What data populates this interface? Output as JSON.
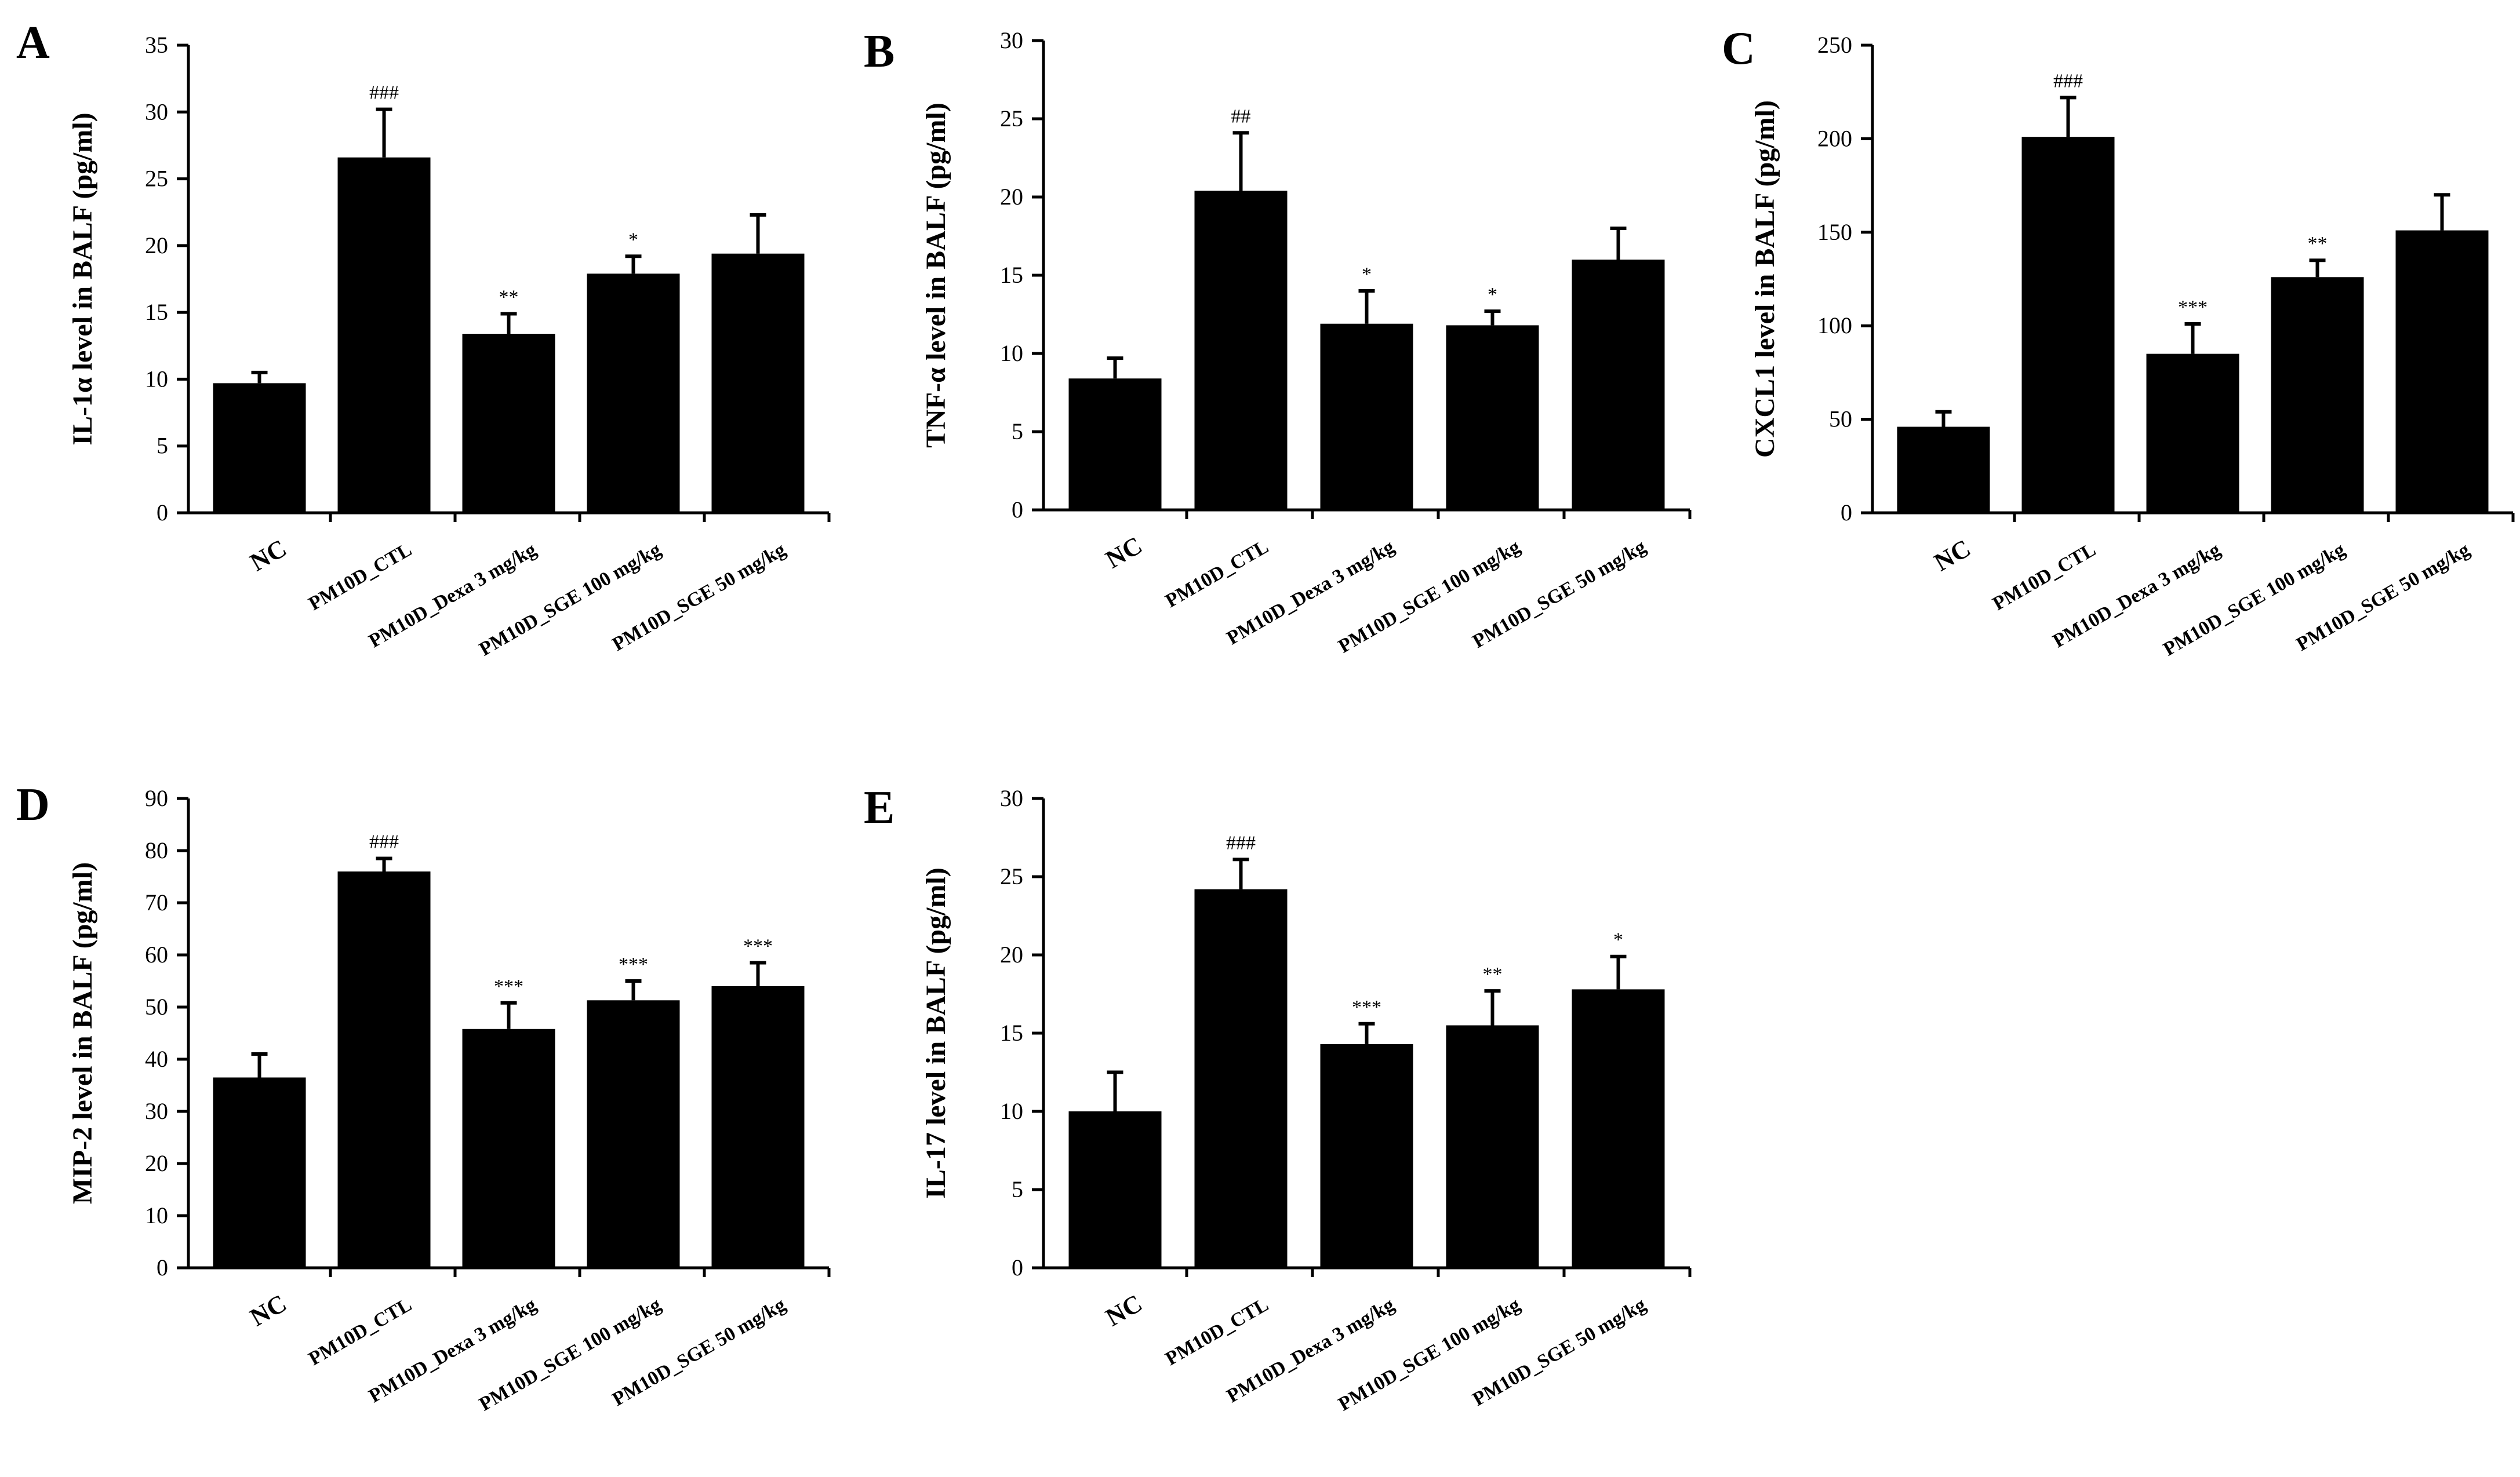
{
  "chart_data": [
    {
      "type": "bar",
      "panel": "A",
      "ylabel": "IL-1α level in  BALF (pg/ml)",
      "ylim": [
        0,
        35
      ],
      "yticks": [
        0,
        5,
        10,
        15,
        20,
        25,
        30,
        35
      ],
      "categories": [
        "NC",
        "PM10D_CTL",
        "PM10D_Dexa 3 mg/kg",
        "PM10D_SGE 100 mg/kg",
        "PM10D_SGE 50 mg/kg"
      ],
      "values": [
        9.7,
        26.6,
        13.4,
        17.9,
        19.4
      ],
      "errors": [
        0.8,
        3.6,
        1.5,
        1.3,
        2.9
      ],
      "significance": [
        "",
        "###",
        "**",
        "*",
        ""
      ]
    },
    {
      "type": "bar",
      "panel": "B",
      "ylabel": "TNF-α level in  BALF (pg/ml)",
      "ylim": [
        0,
        30
      ],
      "yticks": [
        0,
        5,
        10,
        15,
        20,
        25,
        30
      ],
      "categories": [
        "NC",
        "PM10D_CTL",
        "PM10D_Dexa 3 mg/kg",
        "PM10D_SGE 100 mg/kg",
        "PM10D_SGE 50 mg/kg"
      ],
      "values": [
        8.4,
        20.4,
        11.9,
        11.8,
        16.0
      ],
      "errors": [
        1.3,
        3.7,
        2.1,
        0.9,
        2.0
      ],
      "significance": [
        "",
        "##",
        "*",
        "*",
        ""
      ]
    },
    {
      "type": "bar",
      "panel": "C",
      "ylabel": "CXCL1  level in  BALF (pg/ml)",
      "ylim": [
        0,
        250
      ],
      "yticks": [
        0,
        50,
        100,
        150,
        200,
        250
      ],
      "categories": [
        "NC",
        "PM10D_CTL",
        "PM10D_Dexa 3 mg/kg",
        "PM10D_SGE 100 mg/kg",
        "PM10D_SGE 50 mg/kg"
      ],
      "values": [
        46,
        201,
        85,
        126,
        151
      ],
      "errors": [
        8,
        21,
        16,
        9,
        19
      ],
      "significance": [
        "",
        "###",
        "***",
        "**",
        ""
      ]
    },
    {
      "type": "bar",
      "panel": "D",
      "ylabel": "MIP-2 level in  BALF (pg/ml)",
      "ylim": [
        0,
        90
      ],
      "yticks": [
        0,
        10,
        20,
        30,
        40,
        50,
        60,
        70,
        80,
        90
      ],
      "categories": [
        "NC",
        "PM10D_CTL",
        "PM10D_Dexa 3 mg/kg",
        "PM10D_SGE 100 mg/kg",
        "PM10D_SGE 50 mg/kg"
      ],
      "values": [
        36.5,
        76.0,
        45.8,
        51.3,
        54.0
      ],
      "errors": [
        4.5,
        2.5,
        5.0,
        3.7,
        4.5
      ],
      "significance": [
        "",
        "###",
        "***",
        "***",
        "***"
      ]
    },
    {
      "type": "bar",
      "panel": "E",
      "ylabel": "IL-17 level in  BALF (pg/ml)",
      "ylim": [
        0,
        30
      ],
      "yticks": [
        0,
        5,
        10,
        15,
        20,
        25,
        30
      ],
      "categories": [
        "NC",
        "PM10D_CTL",
        "PM10D_Dexa 3 mg/kg",
        "PM10D_SGE 100 mg/kg",
        "PM10D_SGE 50 mg/kg"
      ],
      "values": [
        10.0,
        24.2,
        14.3,
        15.5,
        17.8
      ],
      "errors": [
        2.5,
        1.9,
        1.3,
        2.2,
        2.1
      ],
      "significance": [
        "",
        "###",
        "***",
        "**",
        "*"
      ]
    }
  ]
}
